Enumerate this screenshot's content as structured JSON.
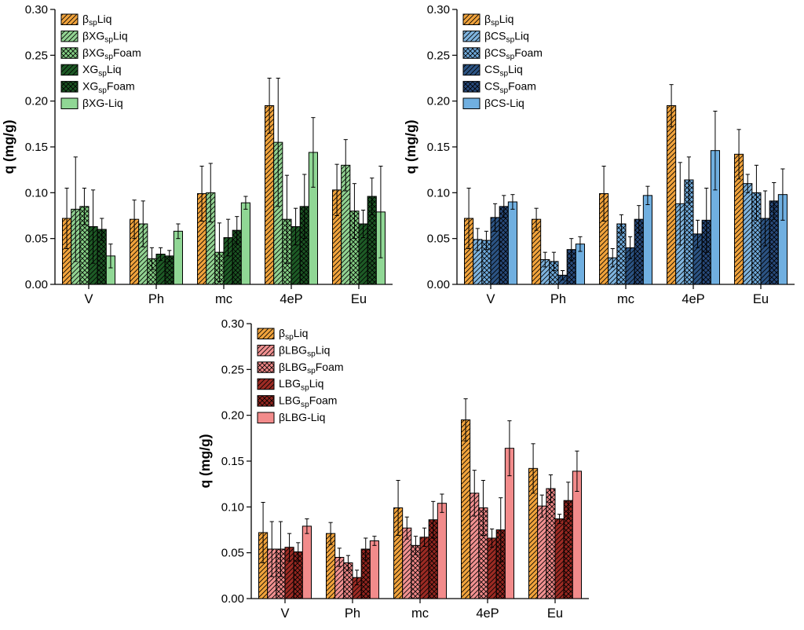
{
  "page": {
    "background": "#ffffff"
  },
  "chart_data": [
    {
      "type": "bar",
      "id": "xg-panel",
      "title": "",
      "ylabel": "q (mg/g)",
      "xlabel": "",
      "ylim": [
        0,
        0.3
      ],
      "yticks": [
        0.0,
        0.05,
        0.1,
        0.15,
        0.2,
        0.25,
        0.3
      ],
      "ytick_labels": [
        "0.00",
        "0.05",
        "0.10",
        "0.15",
        "0.20",
        "0.25",
        "0.30"
      ],
      "categories": [
        "V",
        "Ph",
        "mc",
        "4eP",
        "Eu"
      ],
      "grid": false,
      "legend_position": "top-left",
      "error_bars": true,
      "series": [
        {
          "label": [
            {
              "t": "β"
            },
            {
              "t": "sp",
              "sub": true
            },
            {
              "t": "Liq"
            }
          ],
          "color": "#F1A33C",
          "pattern": "diag",
          "values": [
            0.072,
            0.071,
            0.099,
            0.195,
            0.103
          ],
          "errors": [
            0.033,
            0.021,
            0.03,
            0.03,
            0.028
          ]
        },
        {
          "label": [
            {
              "t": "βXG"
            },
            {
              "t": "sp",
              "sub": true
            },
            {
              "t": "Liq"
            }
          ],
          "color": "#92D292",
          "pattern": "diag",
          "values": [
            0.082,
            0.066,
            0.1,
            0.155,
            0.13
          ],
          "errors": [
            0.057,
            0.025,
            0.032,
            0.07,
            0.028
          ]
        },
        {
          "label": [
            {
              "t": "βXG"
            },
            {
              "t": "sp",
              "sub": true
            },
            {
              "t": "Foam"
            }
          ],
          "color": "#83CC83",
          "pattern": "cross",
          "values": [
            0.085,
            0.028,
            0.035,
            0.071,
            0.08
          ],
          "errors": [
            0.02,
            0.012,
            0.032,
            0.048,
            0.03
          ]
        },
        {
          "label": [
            {
              "t": "XG"
            },
            {
              "t": "sp",
              "sub": true
            },
            {
              "t": "Liq"
            }
          ],
          "color": "#1E5B26",
          "pattern": "diag",
          "values": [
            0.063,
            0.033,
            0.051,
            0.063,
            0.066
          ],
          "errors": [
            0.04,
            0.007,
            0.02,
            0.02,
            0.015
          ]
        },
        {
          "label": [
            {
              "t": "XG"
            },
            {
              "t": "sp",
              "sub": true
            },
            {
              "t": "Foam"
            }
          ],
          "color": "#1B5322",
          "pattern": "cross",
          "values": [
            0.06,
            0.031,
            0.059,
            0.085,
            0.096
          ],
          "errors": [
            0.012,
            0.006,
            0.015,
            0.035,
            0.02
          ]
        },
        {
          "label": [
            {
              "t": "βXG-Liq"
            }
          ],
          "color": "#90D795",
          "pattern": "none",
          "values": [
            0.031,
            0.058,
            0.089,
            0.144,
            0.079
          ],
          "errors": [
            0.013,
            0.008,
            0.007,
            0.038,
            0.05
          ]
        }
      ]
    },
    {
      "type": "bar",
      "id": "cs-panel",
      "title": "",
      "ylabel": "q (mg/g)",
      "xlabel": "",
      "ylim": [
        0,
        0.3
      ],
      "yticks": [
        0.0,
        0.05,
        0.1,
        0.15,
        0.2,
        0.25,
        0.3
      ],
      "ytick_labels": [
        "0.00",
        "0.05",
        "0.10",
        "0.15",
        "0.20",
        "0.25",
        "0.30"
      ],
      "categories": [
        "V",
        "Ph",
        "mc",
        "4eP",
        "Eu"
      ],
      "grid": false,
      "legend_position": "top-left",
      "error_bars": true,
      "series": [
        {
          "label": [
            {
              "t": "β"
            },
            {
              "t": "sp",
              "sub": true
            },
            {
              "t": "Liq"
            }
          ],
          "color": "#F1A33C",
          "pattern": "diag",
          "values": [
            0.072,
            0.071,
            0.099,
            0.195,
            0.142
          ],
          "errors": [
            0.033,
            0.012,
            0.03,
            0.023,
            0.027
          ]
        },
        {
          "label": [
            {
              "t": "βCS"
            },
            {
              "t": "sp",
              "sub": true
            },
            {
              "t": "Liq"
            }
          ],
          "color": "#7FB4DE",
          "pattern": "diag",
          "values": [
            0.049,
            0.027,
            0.029,
            0.088,
            0.11
          ],
          "errors": [
            0.012,
            0.008,
            0.01,
            0.045,
            0.01
          ]
        },
        {
          "label": [
            {
              "t": "βCS"
            },
            {
              "t": "sp",
              "sub": true
            },
            {
              "t": "Foam"
            }
          ],
          "color": "#6FA9DA",
          "pattern": "cross",
          "values": [
            0.048,
            0.025,
            0.066,
            0.114,
            0.1
          ],
          "errors": [
            0.01,
            0.01,
            0.01,
            0.025,
            0.03
          ]
        },
        {
          "label": [
            {
              "t": "CS"
            },
            {
              "t": "sp",
              "sub": true
            },
            {
              "t": "Liq"
            }
          ],
          "color": "#2C5484",
          "pattern": "diag",
          "values": [
            0.073,
            0.01,
            0.04,
            0.055,
            0.072
          ],
          "errors": [
            0.015,
            0.005,
            0.012,
            0.015,
            0.03
          ]
        },
        {
          "label": [
            {
              "t": "CS"
            },
            {
              "t": "sp",
              "sub": true
            },
            {
              "t": "Foam"
            }
          ],
          "color": "#27497A",
          "pattern": "cross",
          "values": [
            0.085,
            0.038,
            0.071,
            0.07,
            0.091
          ],
          "errors": [
            0.012,
            0.012,
            0.015,
            0.035,
            0.02
          ]
        },
        {
          "label": [
            {
              "t": "βCS-Liq"
            }
          ],
          "color": "#70AFE0",
          "pattern": "none",
          "values": [
            0.09,
            0.044,
            0.097,
            0.146,
            0.098
          ],
          "errors": [
            0.008,
            0.008,
            0.01,
            0.043,
            0.028
          ]
        }
      ]
    },
    {
      "type": "bar",
      "id": "lbg-panel",
      "title": "",
      "ylabel": "q (mg/g)",
      "xlabel": "",
      "ylim": [
        0,
        0.3
      ],
      "yticks": [
        0.0,
        0.05,
        0.1,
        0.15,
        0.2,
        0.25,
        0.3
      ],
      "ytick_labels": [
        "0.00",
        "0.05",
        "0.10",
        "0.15",
        "0.20",
        "0.25",
        "0.30"
      ],
      "categories": [
        "V",
        "Ph",
        "mc",
        "4eP",
        "Eu"
      ],
      "grid": false,
      "legend_position": "top-left",
      "error_bars": true,
      "series": [
        {
          "label": [
            {
              "t": "β"
            },
            {
              "t": "sp",
              "sub": true
            },
            {
              "t": "Liq"
            }
          ],
          "color": "#F1A33C",
          "pattern": "diag",
          "values": [
            0.072,
            0.071,
            0.099,
            0.195,
            0.142
          ],
          "errors": [
            0.033,
            0.012,
            0.03,
            0.023,
            0.027
          ]
        },
        {
          "label": [
            {
              "t": "βLBG"
            },
            {
              "t": "sp",
              "sub": true
            },
            {
              "t": "Liq"
            }
          ],
          "color": "#F19191",
          "pattern": "diag",
          "values": [
            0.054,
            0.045,
            0.077,
            0.115,
            0.101
          ],
          "errors": [
            0.03,
            0.01,
            0.012,
            0.025,
            0.012
          ]
        },
        {
          "label": [
            {
              "t": "βLBG"
            },
            {
              "t": "sp",
              "sub": true
            },
            {
              "t": "Foam"
            }
          ],
          "color": "#EE8787",
          "pattern": "cross",
          "values": [
            0.054,
            0.039,
            0.058,
            0.099,
            0.12
          ],
          "errors": [
            0.03,
            0.008,
            0.01,
            0.03,
            0.015
          ]
        },
        {
          "label": [
            {
              "t": "LBG"
            },
            {
              "t": "sp",
              "sub": true
            },
            {
              "t": "Liq"
            }
          ],
          "color": "#9C2B24",
          "pattern": "diag",
          "values": [
            0.056,
            0.023,
            0.067,
            0.066,
            0.087
          ],
          "errors": [
            0.015,
            0.008,
            0.01,
            0.01,
            0.005
          ]
        },
        {
          "label": [
            {
              "t": "LBG"
            },
            {
              "t": "sp",
              "sub": true
            },
            {
              "t": "Foam"
            }
          ],
          "color": "#92251F",
          "pattern": "cross",
          "values": [
            0.051,
            0.054,
            0.086,
            0.075,
            0.107
          ],
          "errors": [
            0.01,
            0.012,
            0.02,
            0.035,
            0.02
          ]
        },
        {
          "label": [
            {
              "t": "βLBG-Liq"
            }
          ],
          "color": "#F28B8B",
          "pattern": "none",
          "values": [
            0.079,
            0.063,
            0.104,
            0.164,
            0.139
          ],
          "errors": [
            0.008,
            0.005,
            0.01,
            0.03,
            0.022
          ]
        }
      ]
    }
  ]
}
